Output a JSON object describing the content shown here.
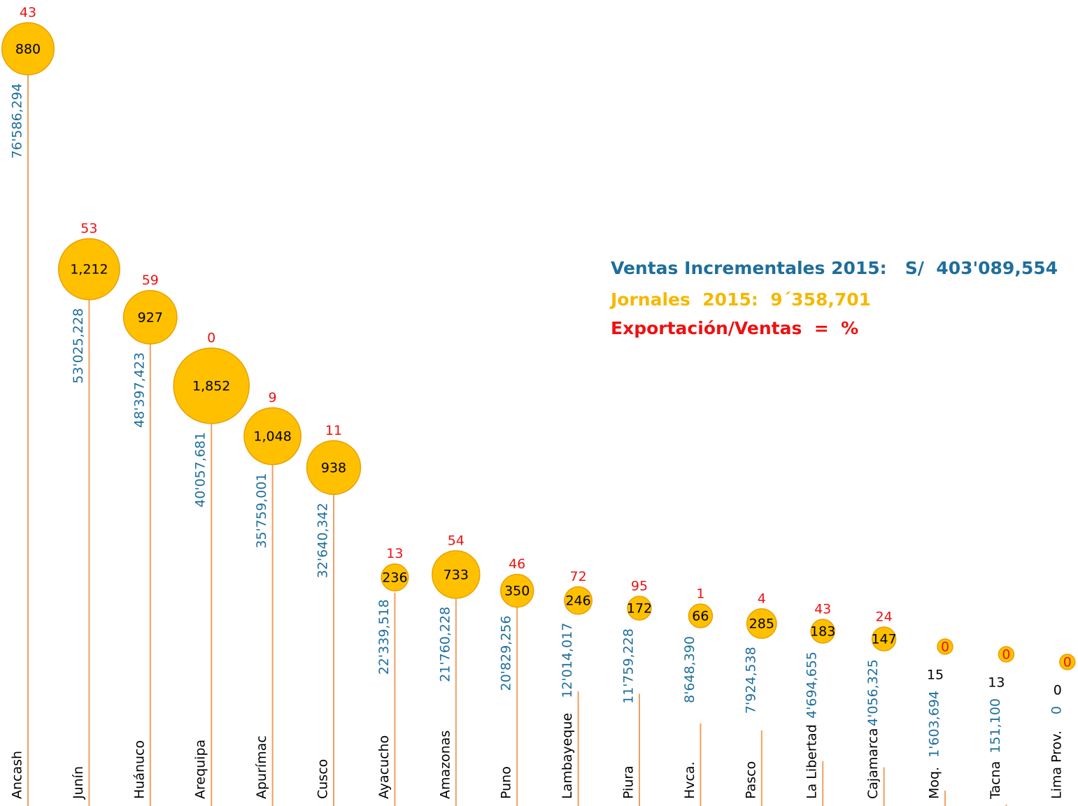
{
  "chart_data": {
    "type": "lollipop",
    "legend": [
      "Ventas Incrementales 2015:   S/  403'089,554",
      "Jornales  2015:  9´358,701",
      "Exportación/Ventas  =  %"
    ],
    "legend_colors": [
      "#1f6e9c",
      "#f5b800",
      "#ee1111"
    ],
    "categories": [
      "Ancash",
      "Junín",
      "Huánuco",
      "Arequipa",
      "Apurímac",
      "Cusco",
      "Ayacucho",
      "Amazonas",
      "Puno",
      "Lambayeque",
      "Piura",
      "Hvca.",
      "Pasco",
      "La Libertad",
      "Cajamarca",
      "Moq.",
      "Tacna",
      "Lima Prov."
    ],
    "ventas": {
      "color": "#1f6e9c",
      "line_color": "#f0a060",
      "values": [
        76586294,
        53025228,
        48397423,
        40057681,
        35759001,
        32640342,
        22339518,
        21760228,
        20829256,
        12014017,
        11759228,
        8648390,
        7924538,
        4694655,
        4056325,
        1603694,
        151100,
        0
      ],
      "value_labels": [
        "76'586,294",
        "53'025,228",
        "48'397,423",
        "40'057,681",
        "35'759,001",
        "32'640,342",
        "22'339,518",
        "21'760,228",
        "20'829,256",
        "12'014,017",
        "11'759,228",
        "8'648,390",
        "7'924,538",
        "4'694,655",
        "4'056,325",
        "1'603,694",
        "151,100",
        "0"
      ]
    },
    "jornales": {
      "color": "#ffc000",
      "stroke": "#e8a000",
      "values": [
        880,
        1212,
        927,
        1852,
        1048,
        938,
        236,
        733,
        350,
        246,
        172,
        66,
        285,
        183,
        147,
        15,
        13,
        0
      ],
      "value_labels": [
        "880",
        "1,212",
        "927",
        "1,852",
        "1,048",
        "938",
        "236",
        "733",
        "350",
        "246",
        "172",
        "66",
        "285",
        "183",
        "147",
        "15",
        "13",
        "0"
      ]
    },
    "exportacion": {
      "color": "#ee1111",
      "values": [
        43,
        53,
        59,
        0,
        9,
        11,
        13,
        54,
        46,
        72,
        95,
        1,
        4,
        43,
        24,
        0,
        0,
        0
      ]
    }
  }
}
